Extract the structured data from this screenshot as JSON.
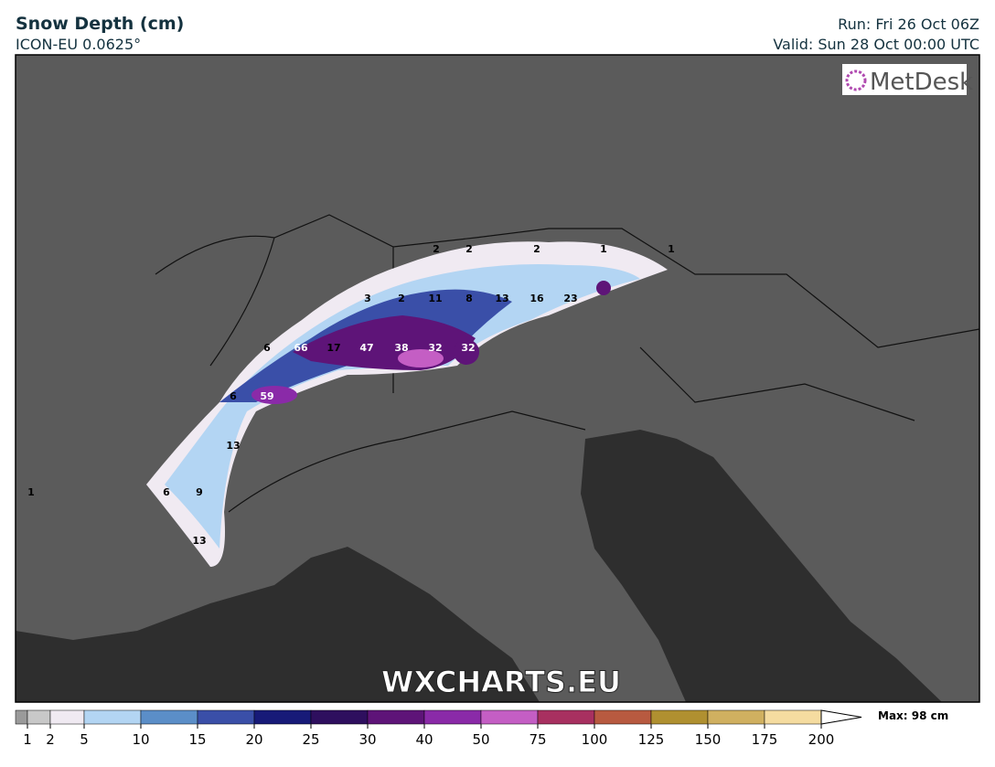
{
  "header": {
    "title": "Snow Depth (cm)",
    "model": "ICON-EU 0.0625°",
    "run": "Run: Fri 26 Oct 06Z",
    "valid": "Valid: Sun 28 Oct 00:00 UTC"
  },
  "logo": "MetDesk",
  "watermark": "WXCHARTS.EU",
  "map_labels": [
    2,
    2,
    2,
    1,
    1,
    3,
    2,
    11,
    8,
    13,
    16,
    23,
    6,
    66,
    17,
    47,
    38,
    32,
    32,
    6,
    59,
    13,
    1,
    6,
    9,
    13
  ],
  "colorbar": {
    "ticks": [
      1,
      2,
      5,
      10,
      15,
      20,
      25,
      30,
      40,
      50,
      75,
      100,
      125,
      150,
      175,
      200
    ],
    "colors": [
      "#c8c8c8",
      "#f0eaf2",
      "#b3d5f3",
      "#5b8ec8",
      "#3a4fa8",
      "#171a78",
      "#2e0f5e",
      "#5e1478",
      "#8a2aa8",
      "#c45ec4",
      "#a83060",
      "#b85a40",
      "#b09030",
      "#d0b060",
      "#f5dca0"
    ],
    "max": "Max: 98 cm"
  }
}
